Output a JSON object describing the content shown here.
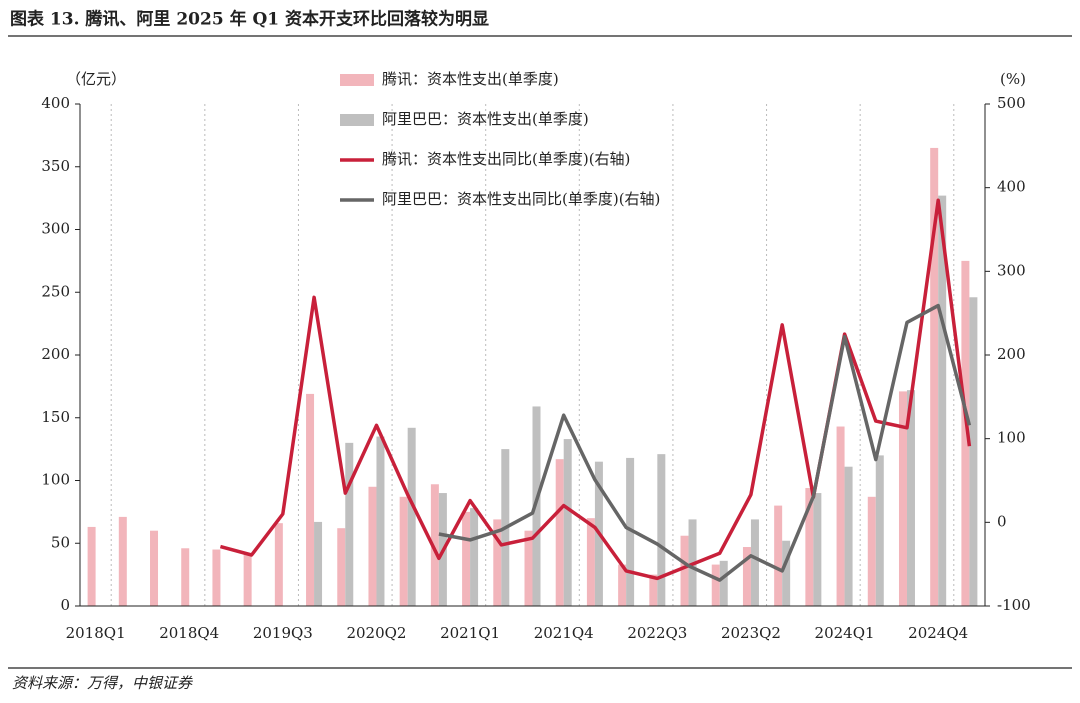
{
  "chart_data": {
    "type": "bar",
    "title": "图表 13. 腾讯、阿里 2025 年 Q1 资本开支环比回落较为明显",
    "source": "资料来源：万得，中银证券",
    "y_label": "（亿元）",
    "y2_label": "(%)",
    "categories": [
      "2018Q1",
      null,
      null,
      "2018Q4",
      null,
      null,
      "2019Q3",
      null,
      null,
      "2020Q2",
      null,
      null,
      "2021Q1",
      null,
      null,
      "2021Q4",
      null,
      null,
      "2022Q3",
      null,
      null,
      "2023Q2",
      null,
      null,
      "2024Q1",
      null,
      null,
      "2024Q4",
      null
    ],
    "ylim": [
      0,
      400
    ],
    "yticks": [
      0,
      50,
      100,
      150,
      200,
      250,
      300,
      350,
      400
    ],
    "y2lim": [
      -100,
      500
    ],
    "y2ticks": [
      -100,
      0,
      100,
      200,
      300,
      400,
      500
    ],
    "grid": true,
    "series": [
      {
        "name": "腾讯：资本性支出(单季度)",
        "type": "bar",
        "color": "#f2b5bb",
        "values": [
          63,
          71,
          60,
          46,
          45,
          42,
          66,
          169,
          62,
          95,
          87,
          97,
          75,
          69,
          60,
          117,
          70,
          33,
          25,
          56,
          33,
          47,
          80,
          94,
          143,
          87,
          171,
          365,
          275
        ]
      },
      {
        "name": "阿里巴巴：资本性支出(单季度)",
        "type": "bar",
        "color": "#bfbfbf",
        "values": [
          null,
          null,
          null,
          null,
          null,
          null,
          null,
          67,
          130,
          135,
          142,
          90,
          78,
          125,
          159,
          133,
          115,
          118,
          121,
          69,
          36,
          69,
          52,
          90,
          111,
          120,
          172,
          327,
          246
        ]
      },
      {
        "name": "腾讯：资本性支出同比(单季度)(右轴)",
        "type": "line",
        "axis": "y2",
        "color": "#c8203a",
        "values": [
          null,
          null,
          null,
          null,
          -29,
          -39,
          10,
          269,
          35,
          116,
          33,
          -43,
          26,
          -27,
          -19,
          20,
          -6,
          -58,
          -67,
          -52,
          -37,
          33,
          236,
          30,
          225,
          121,
          113,
          385,
          91
        ]
      },
      {
        "name": "阿里巴巴：资本性支出同比(单季度)(右轴)",
        "type": "line",
        "axis": "y2",
        "color": "#666666",
        "values": [
          null,
          null,
          null,
          null,
          null,
          null,
          null,
          null,
          null,
          null,
          null,
          -14,
          -21,
          -9,
          11,
          128,
          51,
          -6,
          -26,
          -52,
          -69,
          -40,
          -58,
          31,
          222,
          75,
          239,
          259,
          116
        ]
      }
    ]
  }
}
